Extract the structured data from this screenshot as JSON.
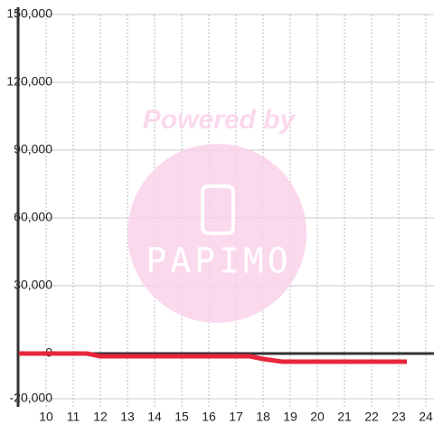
{
  "chart_data": {
    "type": "line",
    "watermark": {
      "top": "Powered by",
      "logo": "PAPIMO"
    },
    "series": [
      {
        "color": "#e8253a",
        "x": [
          9,
          11.5,
          12,
          17.5,
          18,
          18.7,
          23.3
        ],
        "values": [
          0,
          0,
          -1200,
          -1200,
          -2400,
          -3600,
          -3600
        ]
      }
    ],
    "xlim": [
      9,
      24.3
    ],
    "xticks": [
      10,
      11,
      12,
      13,
      14,
      15,
      16,
      17,
      18,
      19,
      20,
      21,
      22,
      23,
      24
    ],
    "ylim": [
      -20000,
      150000
    ],
    "yticks": [
      {
        "value": -20000,
        "label": "-20,000"
      },
      0,
      {
        "value": 30000,
        "label": "30,000"
      },
      {
        "value": 60000,
        "label": "60,000"
      },
      {
        "value": 90000,
        "label": "90,000"
      },
      {
        "value": 120000,
        "label": "120,000"
      },
      {
        "value": 150000,
        "label": "150,000"
      }
    ],
    "grid": true
  }
}
